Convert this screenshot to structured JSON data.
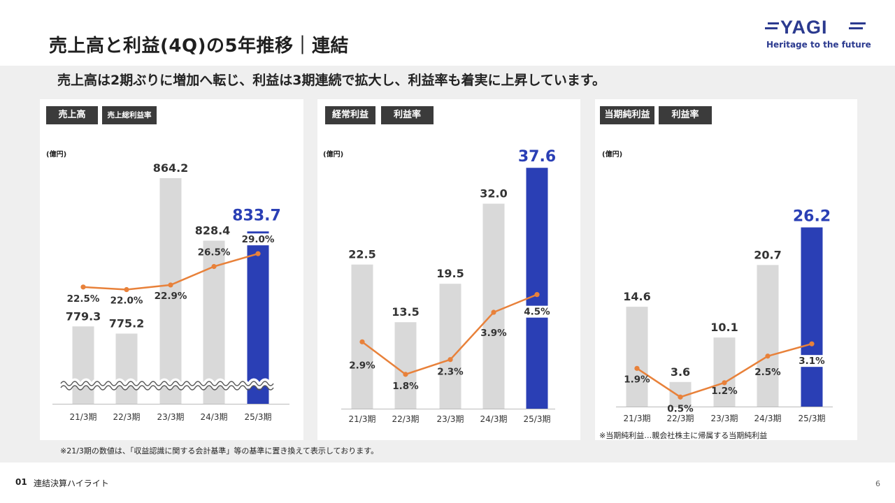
{
  "header": {
    "title": "売上高と利益(4Q)の5年推移｜連結",
    "logo_text": "YAGI",
    "logo_tagline": "Heritage to the future"
  },
  "subtitle": "売上高は2期ぶりに増加へ転じ、利益は3期連続で拡大し、利益率も着実に上昇しています。",
  "colors": {
    "bar_gray": "#d9d9d9",
    "bar_highlight": "#2a3fb5",
    "line": "#e8813a",
    "highlight_text": "#2a3fb5",
    "tag_bg": "#3b3b3b"
  },
  "chart_data": [
    {
      "type": "bar",
      "tags": [
        "売上高",
        "売上総利益率"
      ],
      "unit": "(億円)",
      "categories": [
        "21/3期",
        "22/3期",
        "23/3期",
        "24/3期",
        "25/3期"
      ],
      "series": [
        {
          "name": "売上高",
          "type": "bar",
          "values": [
            779.3,
            775.2,
            864.2,
            828.4,
            833.7
          ],
          "labels": [
            "779.3",
            "775.2",
            "864.2",
            "828.4",
            "833.7"
          ]
        },
        {
          "name": "売上総利益率",
          "type": "line",
          "values": [
            22.5,
            22.0,
            22.9,
            26.5,
            29.0
          ],
          "labels": [
            "22.5%",
            "22.0%",
            "22.9%",
            "26.5%",
            "29.0%"
          ]
        }
      ],
      "axis_break": true,
      "highlight_index": 4
    },
    {
      "type": "bar",
      "tags": [
        "経常利益",
        "利益率"
      ],
      "unit": "(億円)",
      "categories": [
        "21/3期",
        "22/3期",
        "23/3期",
        "24/3期",
        "25/3期"
      ],
      "series": [
        {
          "name": "経常利益",
          "type": "bar",
          "values": [
            22.5,
            13.5,
            19.5,
            32.0,
            37.6
          ],
          "labels": [
            "22.5",
            "13.5",
            "19.5",
            "32.0",
            "37.6"
          ]
        },
        {
          "name": "利益率",
          "type": "line",
          "values": [
            2.9,
            1.8,
            2.3,
            3.9,
            4.5
          ],
          "labels": [
            "2.9%",
            "1.8%",
            "2.3%",
            "3.9%",
            "4.5%"
          ]
        }
      ],
      "highlight_index": 4
    },
    {
      "type": "bar",
      "tags": [
        "当期純利益",
        "利益率"
      ],
      "unit": "(億円)",
      "categories": [
        "21/3期",
        "22/3期",
        "23/3期",
        "24/3期",
        "25/3期"
      ],
      "series": [
        {
          "name": "当期純利益",
          "type": "bar",
          "values": [
            14.6,
            3.6,
            10.1,
            20.7,
            26.2
          ],
          "labels": [
            "14.6",
            "3.6",
            "10.1",
            "20.7",
            "26.2"
          ]
        },
        {
          "name": "利益率",
          "type": "line",
          "values": [
            1.9,
            0.5,
            1.2,
            2.5,
            3.1
          ],
          "labels": [
            "1.9%",
            "0.5%",
            "1.2%",
            "2.5%",
            "3.1%"
          ]
        }
      ],
      "highlight_index": 4,
      "note": "※当期純利益…親会社株主に帰属する当期純利益"
    }
  ],
  "footnote": "※21/3期の数値は、「収益認識に関する会計基準」等の基準に置き換えて表示しております。",
  "footer": {
    "section_number": "01",
    "section_label": "連結決算ハイライト",
    "page_number": "6"
  }
}
